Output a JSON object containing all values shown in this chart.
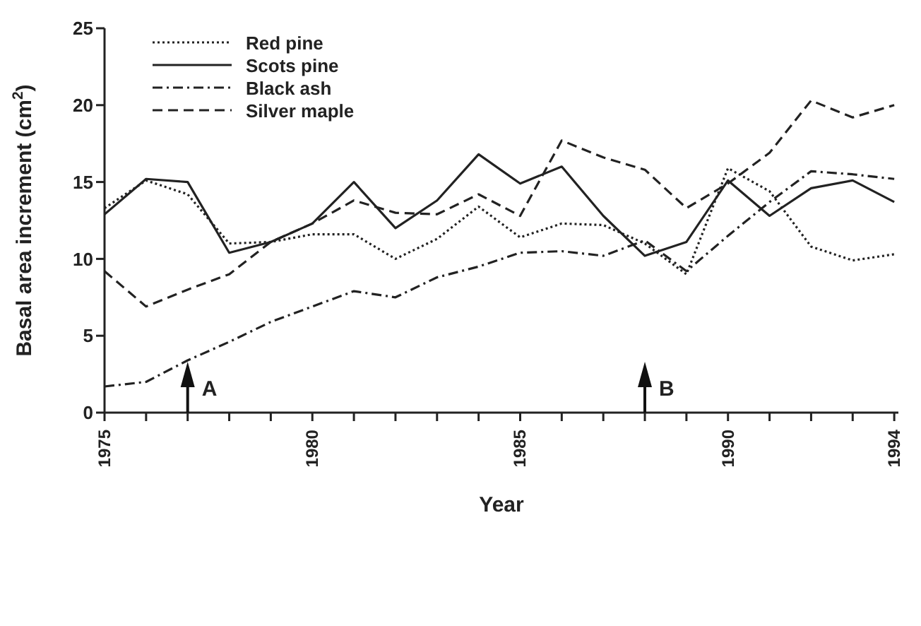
{
  "chart_data": {
    "type": "line",
    "xlabel": "Year",
    "ylabel": "Basal area increment (cm$^{2}$)",
    "x": [
      1975,
      1976,
      1977,
      1978,
      1979,
      1980,
      1981,
      1982,
      1983,
      1984,
      1985,
      1986,
      1987,
      1988,
      1989,
      1990,
      1991,
      1992,
      1993,
      1994
    ],
    "series": [
      {
        "name": "Red pine",
        "color": "#222222",
        "line_style": "dotted",
        "values": [
          13.3,
          15.1,
          14.2,
          11.0,
          11.1,
          11.6,
          11.6,
          10.0,
          11.3,
          13.4,
          11.4,
          12.3,
          12.2,
          11.0,
          9.0,
          15.9,
          14.4,
          10.8,
          9.9,
          10.3
        ]
      },
      {
        "name": "Scots pine",
        "color": "#222222",
        "line_style": "solid",
        "values": [
          12.9,
          15.2,
          15.0,
          10.4,
          11.1,
          12.3,
          15.0,
          12.0,
          13.8,
          16.8,
          14.9,
          16.0,
          12.8,
          10.2,
          11.1,
          15.1,
          12.8,
          14.6,
          15.1,
          13.7
        ]
      },
      {
        "name": "Black ash",
        "color": "#222222",
        "line_style": "dashdot",
        "values": [
          1.7,
          2.0,
          3.4,
          4.6,
          5.9,
          6.9,
          7.9,
          7.5,
          8.8,
          9.5,
          10.4,
          10.5,
          10.2,
          11.2,
          9.2,
          11.5,
          13.7,
          15.7,
          15.5,
          15.2
        ]
      },
      {
        "name": "Silver maple",
        "color": "#222222",
        "line_style": "dashed",
        "values": [
          9.2,
          6.9,
          8.0,
          9.0,
          11.1,
          12.3,
          13.8,
          13.0,
          12.9,
          14.2,
          12.8,
          17.7,
          16.6,
          15.8,
          13.3,
          14.9,
          16.9,
          20.3,
          19.2,
          20.0
        ]
      }
    ],
    "xlim": [
      1975,
      1994.1
    ],
    "xticks": [
      1975,
      {
        "value": 1976,
        "label": null
      },
      {
        "value": 1977,
        "label": null
      },
      {
        "value": 1978,
        "label": null
      },
      {
        "value": 1979,
        "label": null
      },
      1980,
      {
        "value": 1981,
        "label": null
      },
      {
        "value": 1982,
        "label": null
      },
      {
        "value": 1983,
        "label": null
      },
      {
        "value": 1984,
        "label": null
      },
      1985,
      {
        "value": 1986,
        "label": null
      },
      {
        "value": 1987,
        "label": null
      },
      {
        "value": 1988,
        "label": null
      },
      {
        "value": 1989,
        "label": null
      },
      1990,
      {
        "value": 1991,
        "label": null
      },
      {
        "value": 1992,
        "label": null
      },
      {
        "value": 1993,
        "label": null
      },
      1994
    ],
    "ylim": [
      0,
      25
    ],
    "yticks": [
      0,
      5,
      10,
      15,
      20,
      25
    ],
    "ref_lines": [
      {
        "axis": "x",
        "value": 1977,
        "label": "A"
      },
      {
        "axis": "x",
        "value": 1988,
        "label": "B"
      }
    ],
    "legend": "top left",
    "grid": false,
    "marker": "none"
  }
}
